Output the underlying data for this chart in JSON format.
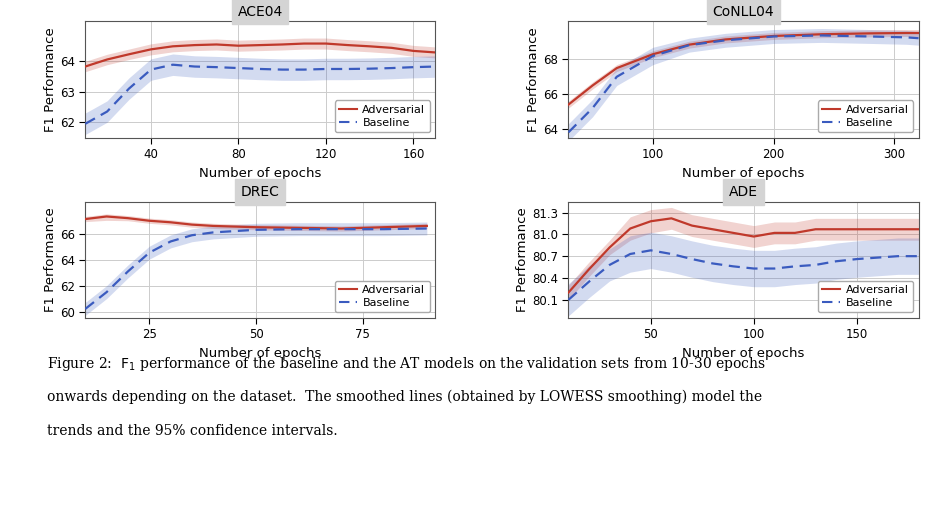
{
  "subplots": [
    {
      "title": "ACE04",
      "xlabel": "Number of epochs",
      "ylabel": "F1 Performance",
      "xlim": [
        10,
        170
      ],
      "ylim": [
        61.5,
        65.3
      ],
      "xticks": [
        40,
        80,
        120,
        160
      ],
      "yticks": [
        62,
        63,
        64
      ],
      "adv_x": [
        10,
        20,
        30,
        40,
        50,
        60,
        70,
        80,
        90,
        100,
        110,
        120,
        130,
        140,
        150,
        160,
        170
      ],
      "adv_y": [
        63.82,
        64.05,
        64.22,
        64.38,
        64.48,
        64.52,
        64.54,
        64.5,
        64.52,
        64.54,
        64.57,
        64.57,
        64.52,
        64.48,
        64.43,
        64.33,
        64.28
      ],
      "adv_lo": [
        63.65,
        63.88,
        64.05,
        64.2,
        64.3,
        64.34,
        64.36,
        64.32,
        64.34,
        64.36,
        64.39,
        64.39,
        64.34,
        64.3,
        64.25,
        64.15,
        64.1
      ],
      "adv_hi": [
        63.99,
        64.22,
        64.39,
        64.56,
        64.66,
        64.7,
        64.72,
        64.68,
        64.7,
        64.72,
        64.75,
        64.75,
        64.7,
        64.66,
        64.61,
        64.51,
        64.46
      ],
      "base_x": [
        10,
        20,
        30,
        40,
        50,
        60,
        70,
        80,
        90,
        100,
        110,
        120,
        130,
        140,
        150,
        160,
        170
      ],
      "base_y": [
        61.95,
        62.35,
        63.1,
        63.72,
        63.88,
        63.82,
        63.8,
        63.77,
        63.74,
        63.72,
        63.72,
        63.74,
        63.74,
        63.75,
        63.77,
        63.8,
        63.82
      ],
      "base_lo": [
        61.6,
        62.0,
        62.75,
        63.37,
        63.53,
        63.47,
        63.45,
        63.42,
        63.39,
        63.37,
        63.37,
        63.39,
        63.39,
        63.4,
        63.42,
        63.45,
        63.47
      ],
      "base_hi": [
        62.3,
        62.7,
        63.45,
        64.07,
        64.23,
        64.17,
        64.15,
        64.12,
        64.09,
        64.07,
        64.07,
        64.09,
        64.09,
        64.1,
        64.12,
        64.15,
        64.17
      ]
    },
    {
      "title": "CoNLL04",
      "xlabel": "Number of epochs",
      "ylabel": "F1 Performance",
      "xlim": [
        30,
        320
      ],
      "ylim": [
        63.5,
        70.2
      ],
      "xticks": [
        100,
        200,
        300
      ],
      "yticks": [
        64,
        66,
        68
      ],
      "adv_x": [
        30,
        50,
        70,
        100,
        130,
        160,
        200,
        240,
        280,
        310,
        320
      ],
      "adv_y": [
        65.4,
        66.5,
        67.5,
        68.3,
        68.85,
        69.15,
        69.35,
        69.45,
        69.5,
        69.52,
        69.52
      ],
      "adv_lo": [
        65.2,
        66.3,
        67.3,
        68.1,
        68.65,
        68.95,
        69.15,
        69.25,
        69.3,
        69.32,
        69.32
      ],
      "adv_hi": [
        65.6,
        66.7,
        67.7,
        68.5,
        69.05,
        69.35,
        69.55,
        69.65,
        69.7,
        69.72,
        69.72
      ],
      "base_x": [
        30,
        50,
        70,
        100,
        130,
        160,
        200,
        240,
        280,
        310,
        320
      ],
      "base_y": [
        63.8,
        65.2,
        67.0,
        68.2,
        68.82,
        69.1,
        69.32,
        69.38,
        69.32,
        69.27,
        69.22
      ],
      "base_lo": [
        63.3,
        64.7,
        66.5,
        67.7,
        68.42,
        68.7,
        68.92,
        68.98,
        68.92,
        68.87,
        68.82
      ],
      "base_hi": [
        64.3,
        65.7,
        67.5,
        68.7,
        69.22,
        69.5,
        69.72,
        69.78,
        69.72,
        69.67,
        69.62
      ]
    },
    {
      "title": "DREC",
      "xlabel": "Number of epochs",
      "ylabel": "F1 Performance",
      "xlim": [
        10,
        92
      ],
      "ylim": [
        59.5,
        68.5
      ],
      "xticks": [
        25,
        50,
        75
      ],
      "yticks": [
        60,
        62,
        64,
        66
      ],
      "adv_x": [
        10,
        15,
        20,
        25,
        30,
        35,
        40,
        50,
        60,
        70,
        80,
        90
      ],
      "adv_y": [
        67.15,
        67.35,
        67.22,
        67.02,
        66.9,
        66.72,
        66.62,
        66.52,
        66.47,
        66.42,
        66.52,
        66.62
      ],
      "adv_lo": [
        66.95,
        67.05,
        67.02,
        66.82,
        66.7,
        66.52,
        66.42,
        66.32,
        66.27,
        66.22,
        66.32,
        66.42
      ],
      "adv_hi": [
        67.35,
        67.55,
        67.42,
        67.22,
        67.1,
        66.92,
        66.82,
        66.72,
        66.67,
        66.62,
        66.72,
        66.82
      ],
      "base_x": [
        10,
        15,
        20,
        25,
        30,
        35,
        40,
        50,
        60,
        70,
        80,
        90
      ],
      "base_y": [
        60.2,
        61.5,
        63.1,
        64.55,
        65.42,
        65.9,
        66.12,
        66.32,
        66.37,
        66.37,
        66.37,
        66.42
      ],
      "base_lo": [
        59.7,
        61.0,
        62.6,
        64.05,
        64.92,
        65.4,
        65.62,
        65.82,
        65.87,
        65.87,
        65.87,
        65.92
      ],
      "base_hi": [
        60.7,
        62.0,
        63.6,
        65.05,
        65.92,
        66.4,
        66.62,
        66.82,
        66.87,
        66.87,
        66.87,
        66.92
      ]
    },
    {
      "title": "ADE",
      "xlabel": "Number of epochs",
      "ylabel": "F1 Performance",
      "xlim": [
        10,
        180
      ],
      "ylim": [
        79.85,
        81.45
      ],
      "xticks": [
        50,
        100,
        150
      ],
      "yticks": [
        80.1,
        80.4,
        80.7,
        81.0,
        81.3
      ],
      "adv_x": [
        10,
        20,
        30,
        40,
        50,
        60,
        70,
        80,
        90,
        100,
        110,
        120,
        130,
        140,
        150,
        160,
        170,
        180
      ],
      "adv_y": [
        80.2,
        80.52,
        80.82,
        81.08,
        81.18,
        81.22,
        81.12,
        81.07,
        81.02,
        80.97,
        81.02,
        81.02,
        81.07,
        81.07,
        81.07,
        81.07,
        81.07,
        81.07
      ],
      "adv_lo": [
        80.1,
        80.42,
        80.72,
        80.92,
        81.02,
        81.07,
        80.97,
        80.92,
        80.87,
        80.82,
        80.87,
        80.87,
        80.92,
        80.92,
        80.92,
        80.92,
        80.92,
        80.92
      ],
      "adv_hi": [
        80.3,
        80.62,
        80.92,
        81.24,
        81.34,
        81.37,
        81.27,
        81.22,
        81.17,
        81.12,
        81.17,
        81.17,
        81.22,
        81.22,
        81.22,
        81.22,
        81.22,
        81.22
      ],
      "base_x": [
        10,
        20,
        30,
        40,
        50,
        60,
        70,
        80,
        90,
        100,
        110,
        120,
        130,
        140,
        150,
        160,
        170,
        180
      ],
      "base_y": [
        80.1,
        80.35,
        80.58,
        80.73,
        80.78,
        80.73,
        80.66,
        80.6,
        80.56,
        80.53,
        80.53,
        80.56,
        80.58,
        80.63,
        80.66,
        80.68,
        80.7,
        80.7
      ],
      "base_lo": [
        79.88,
        80.13,
        80.36,
        80.48,
        80.53,
        80.48,
        80.41,
        80.35,
        80.31,
        80.28,
        80.28,
        80.31,
        80.33,
        80.38,
        80.41,
        80.43,
        80.45,
        80.45
      ],
      "base_hi": [
        80.32,
        80.57,
        80.8,
        80.98,
        81.03,
        80.98,
        80.91,
        80.85,
        80.81,
        80.78,
        80.78,
        80.81,
        80.83,
        80.88,
        80.91,
        80.93,
        80.95,
        80.95
      ]
    }
  ],
  "adv_color": "#c0392b",
  "base_color": "#3a5bbf",
  "adv_fill_alpha": 0.22,
  "base_fill_alpha": 0.22,
  "grid_color": "#cccccc",
  "plot_bg": "#ffffff",
  "title_bg": "#d4d4d4",
  "outer_bg": "#e8e8e8",
  "caption_line1": "Figure 2:  F",
  "caption_line1b": " performance of the baseline and the AT models on the validation sets from 10-30 epochs",
  "caption_line2": "onwards depending on the dataset.  The smoothed lines (obtained by LOWESS smoothing) model the",
  "caption_line3": "trends and the 95% confidence intervals.",
  "caption_fontsize": 10.0
}
